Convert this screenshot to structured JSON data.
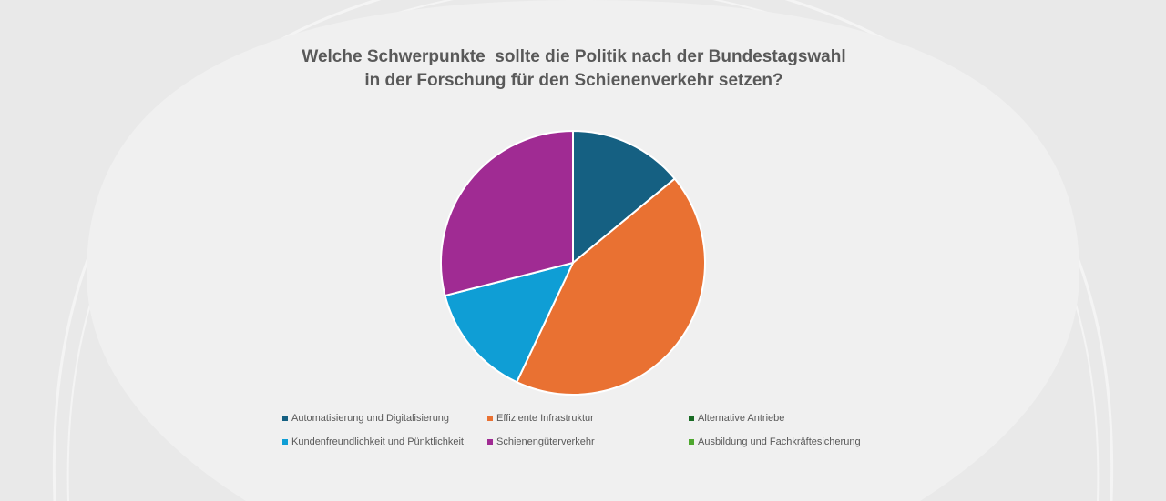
{
  "chart_data": {
    "type": "pie",
    "title": "Welche Schwerpunkte  sollte die Politik nach der Bundestagswahl in der Forschung für den Schienenverkehr setzen?",
    "legend_position": "bottom",
    "slices": [
      {
        "label": "Automatisierung und Digitalisierung",
        "value": 14,
        "color": "#156082"
      },
      {
        "label": "Effiziente Infrastruktur",
        "value": 43,
        "color": "#E97132"
      },
      {
        "label": "Alternative Antriebe",
        "value": 0,
        "color": "#196B24"
      },
      {
        "label": "Kundenfreundlichkeit und Pünktlichkeit",
        "value": 14,
        "color": "#0F9ED5"
      },
      {
        "label": "Schienengüterverkehr",
        "value": 29,
        "color": "#A02B93"
      },
      {
        "label": "Ausbildung und Fachkräftesicherung",
        "value": 0,
        "color": "#4EA72E"
      }
    ]
  }
}
